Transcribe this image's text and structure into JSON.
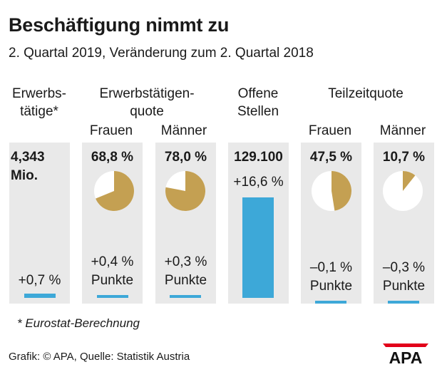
{
  "title": "Beschäftigung nimmt zu",
  "subtitle": "2. Quartal 2019, Veränderung zum 2. Quartal 2018",
  "headers": {
    "erwerbstaetige": [
      "Erwerbs-",
      "tätige*"
    ],
    "quote": [
      "Erwerbstätigen-",
      "quote"
    ],
    "offene": [
      "Offene",
      "Stellen"
    ],
    "teilzeit": "Teilzeitquote",
    "frauen": "Frauen",
    "maenner": "Männer"
  },
  "colors": {
    "bar": "#3da8d8",
    "pie_fill": "#c4a052",
    "pie_rest": "#ffffff",
    "panel": "#e9e9e9",
    "logo": "#e2001a"
  },
  "chart_data": {
    "type": "bar",
    "title": "Beschäftigung nimmt zu",
    "subtitle": "2. Quartal 2019, Veränderung zum 2. Quartal 2018",
    "columns": [
      {
        "key": "erwerbstaetige",
        "value_lines": [
          "4,343",
          "Mio."
        ],
        "change_lines": [
          "+0,7 %"
        ],
        "change": 0.7
      },
      {
        "key": "quote_frauen",
        "value_lines": [
          "68,8 %"
        ],
        "share": 68.8,
        "change_lines": [
          "+0,4 %",
          "Punkte"
        ],
        "change": 0.4
      },
      {
        "key": "quote_maenner",
        "value_lines": [
          "78,0 %"
        ],
        "share": 78.0,
        "change_lines": [
          "+0,3 %",
          "Punkte"
        ],
        "change": 0.3
      },
      {
        "key": "offene_stellen",
        "value_lines": [
          "129.100"
        ],
        "change_lines": [
          "+16,6 %"
        ],
        "change": 16.6
      },
      {
        "key": "teilzeit_frauen",
        "value_lines": [
          "47,5 %"
        ],
        "share": 47.5,
        "change_lines": [
          "–0,1 %",
          "Punkte"
        ],
        "change": -0.1
      },
      {
        "key": "teilzeit_maenner",
        "value_lines": [
          "10,7 %"
        ],
        "share": 10.7,
        "change_lines": [
          "–0,3 %",
          "Punkte"
        ],
        "change": -0.3
      }
    ]
  },
  "footnote": "* Eurostat-Berechnung",
  "source": "Grafik: © APA, Quelle: Statistik Austria",
  "logo_text": "APA"
}
